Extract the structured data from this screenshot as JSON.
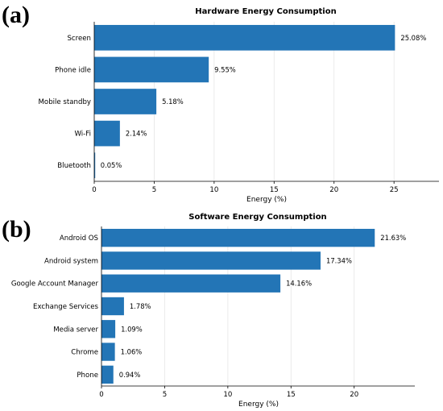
{
  "panels": [
    {
      "label": "(a)"
    },
    {
      "label": "(b)"
    }
  ],
  "colors": {
    "bar": "#2375b6",
    "grid": "#e6e6e6",
    "axis": "#000000"
  },
  "chart_data": [
    {
      "type": "bar",
      "orientation": "horizontal",
      "title": "Hardware Energy Consumption",
      "xlabel": "Energy (%)",
      "ylabel": "",
      "categories": [
        "Screen",
        "Phone idle",
        "Mobile standby",
        "Wi-Fi",
        "Bluetooth"
      ],
      "values": [
        25.08,
        9.55,
        5.18,
        2.14,
        0.05
      ],
      "value_labels": [
        "25.08%",
        "9.55%",
        "5.18%",
        "2.14%",
        "0.05%"
      ],
      "xlim": [
        0,
        28.75
      ],
      "xticks": [
        0,
        5,
        10,
        15,
        20,
        25
      ],
      "grid": "vertical, light"
    },
    {
      "type": "bar",
      "orientation": "horizontal",
      "title": "Software Energy Consumption",
      "xlabel": "Energy (%)",
      "ylabel": "",
      "categories": [
        "Android OS",
        "Android system",
        "Google Account Manager",
        "Exchange Services",
        "Media server",
        "Chrome",
        "Phone"
      ],
      "values": [
        21.63,
        17.34,
        14.16,
        1.78,
        1.09,
        1.06,
        0.94
      ],
      "value_labels": [
        "21.63%",
        "17.34%",
        "14.16%",
        "1.78%",
        "1.09%",
        "1.06%",
        "0.94%"
      ],
      "xlim": [
        0,
        24.8
      ],
      "xticks": [
        0,
        5,
        10,
        15,
        20
      ],
      "grid": "vertical, light"
    }
  ]
}
